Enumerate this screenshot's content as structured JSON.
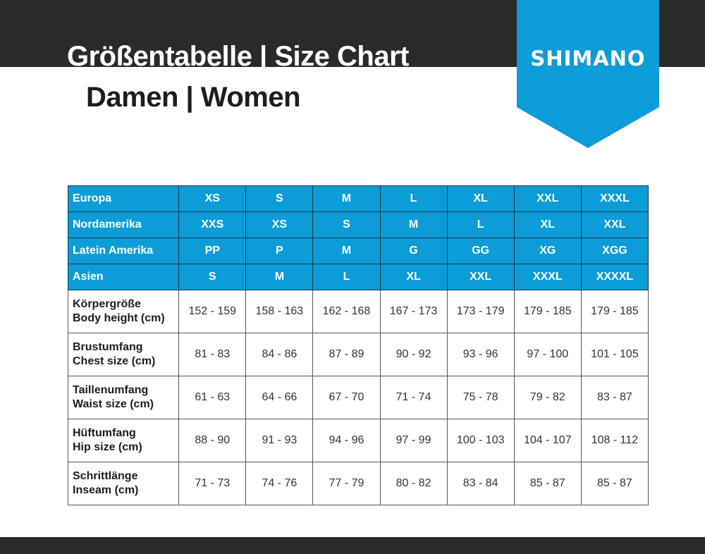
{
  "header": {
    "title": "Größentabelle | Size Chart",
    "subtitle": "Damen | Women",
    "brand": "SHIMANO",
    "brand_color": "#0c9cd8",
    "band_color": "#2b2a29"
  },
  "table": {
    "size_rows": [
      {
        "label": "Europa",
        "values": [
          "XS",
          "S",
          "M",
          "L",
          "XL",
          "XXL",
          "XXXL"
        ]
      },
      {
        "label": "Nordamerika",
        "values": [
          "XXS",
          "XS",
          "S",
          "M",
          "L",
          "XL",
          "XXL"
        ]
      },
      {
        "label": "Latein Amerika",
        "values": [
          "PP",
          "P",
          "M",
          "G",
          "GG",
          "XG",
          "XGG"
        ]
      },
      {
        "label": "Asien",
        "values": [
          "S",
          "M",
          "L",
          "XL",
          "XXL",
          "XXXL",
          "XXXXL"
        ]
      }
    ],
    "measure_rows": [
      {
        "label_de": "Körpergröße",
        "label_en": "Body height (cm)",
        "values": [
          "152 - 159",
          "158 - 163",
          "162 - 168",
          "167 - 173",
          "173 - 179",
          "179 - 185",
          "179 - 185"
        ]
      },
      {
        "label_de": "Brustumfang",
        "label_en": "Chest size (cm)",
        "values": [
          "81 - 83",
          "84 - 86",
          "87 - 89",
          "90 - 92",
          "93 - 96",
          "97 - 100",
          "101 - 105"
        ]
      },
      {
        "label_de": "Taillenumfang",
        "label_en": "Waist size (cm)",
        "values": [
          "61 - 63",
          "64 - 66",
          "67 - 70",
          "71 - 74",
          "75 - 78",
          "79 - 82",
          "83 - 87"
        ]
      },
      {
        "label_de": "Hüftumfang",
        "label_en": "Hip size (cm)",
        "values": [
          "88 - 90",
          "91 - 93",
          "94 - 96",
          "97 - 99",
          "100 - 103",
          "104 - 107",
          "108 - 112"
        ]
      },
      {
        "label_de": "Schrittlänge",
        "label_en": "Inseam (cm)",
        "values": [
          "71 - 73",
          "74 - 76",
          "77 - 79",
          "80 - 82",
          "83 - 84",
          "85 - 87",
          "85 - 87"
        ]
      }
    ]
  }
}
